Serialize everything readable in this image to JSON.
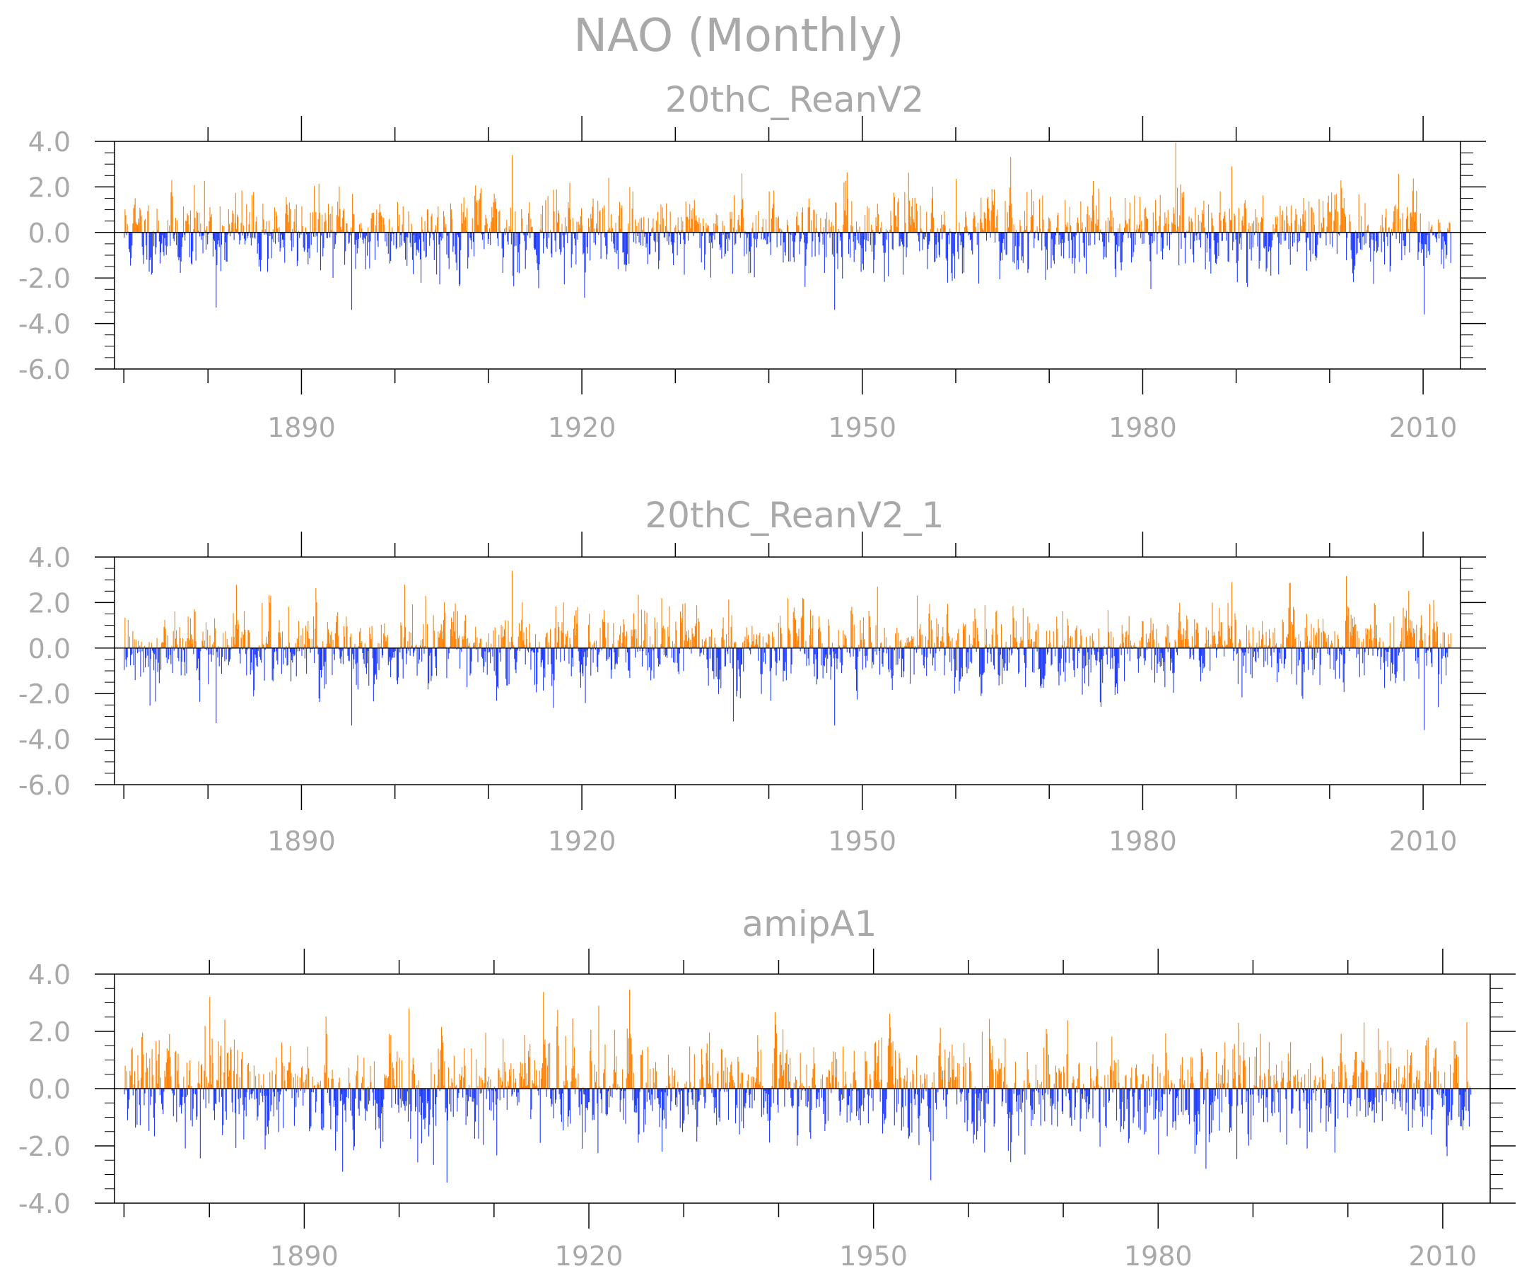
{
  "figure": {
    "title": "NAO (Monthly)"
  },
  "colors": {
    "positive": "#ff8000",
    "negative": "#1e3cff",
    "frame": "#000000",
    "text": "#a9a9a9"
  },
  "chart_data": [
    {
      "type": "bar",
      "title": "20thC_ReanV2",
      "x_range": [
        1871,
        2012.99
      ],
      "xlim": [
        1870,
        2014
      ],
      "ylim": [
        -6,
        4
      ],
      "y_ticks": [
        4,
        2,
        0,
        -2,
        -4,
        -6
      ],
      "y_tick_labels": [
        "4.0",
        "2.0",
        "0.0",
        "-2.0",
        "-4.0",
        "-6.0"
      ],
      "x_major_ticks": [
        1890,
        1920,
        1950,
        1980,
        2010
      ],
      "x_tick_labels": [
        "1890",
        "1920",
        "1950",
        "1980",
        "2010"
      ],
      "x_minor_step": 10,
      "baseline": 0,
      "bars": "monthly NAO index anomalies, positive orange / negative blue",
      "notable_values": [
        {
          "x": 1912.5,
          "y": 3.4
        },
        {
          "x": 1989.5,
          "y": 2.9
        },
        {
          "x": 1947.0,
          "y": -3.4
        },
        {
          "x": 2010.1,
          "y": -3.6
        },
        {
          "x": 1895.3,
          "y": -3.4
        },
        {
          "x": 1880.8,
          "y": -3.3
        }
      ],
      "seed": 11
    },
    {
      "type": "bar",
      "title": "20thC_ReanV2_1",
      "x_range": [
        1871,
        2012.99
      ],
      "xlim": [
        1870,
        2014
      ],
      "ylim": [
        -6,
        4
      ],
      "y_ticks": [
        4,
        2,
        0,
        -2,
        -4,
        -6
      ],
      "y_tick_labels": [
        "4.0",
        "2.0",
        "0.0",
        "-2.0",
        "-4.0",
        "-6.0"
      ],
      "x_major_ticks": [
        1890,
        1920,
        1950,
        1980,
        2010
      ],
      "x_tick_labels": [
        "1890",
        "1920",
        "1950",
        "1980",
        "2010"
      ],
      "x_minor_step": 10,
      "baseline": 0,
      "notable_values": [
        {
          "x": 1912.5,
          "y": 3.4
        },
        {
          "x": 1989.5,
          "y": 2.9
        },
        {
          "x": 1947.0,
          "y": -3.4
        },
        {
          "x": 2010.1,
          "y": -3.6
        },
        {
          "x": 1895.3,
          "y": -3.4
        },
        {
          "x": 1880.8,
          "y": -3.3
        }
      ],
      "seed": 12
    },
    {
      "type": "bar",
      "title": "amipA1",
      "x_range": [
        1871,
        2012.99
      ],
      "xlim": [
        1870,
        2015
      ],
      "ylim": [
        -4,
        4
      ],
      "y_ticks": [
        4,
        2,
        0,
        -2,
        -4
      ],
      "y_tick_labels": [
        "4.0",
        "2.0",
        "0.0",
        "-2.0",
        "-4.0"
      ],
      "x_major_ticks": [
        1890,
        1920,
        1950,
        1980,
        2010
      ],
      "x_tick_labels": [
        "1890",
        "1920",
        "1950",
        "1980",
        "2010"
      ],
      "x_minor_step": 10,
      "baseline": 0,
      "notable_values": [
        {
          "x": 1880.0,
          "y": 3.2
        },
        {
          "x": 1921.0,
          "y": 2.9
        },
        {
          "x": 1901.0,
          "y": 2.8
        },
        {
          "x": 1956.0,
          "y": -3.2
        },
        {
          "x": 1894.0,
          "y": -2.9
        },
        {
          "x": 1985.0,
          "y": -2.8
        }
      ],
      "seed": 33
    }
  ]
}
